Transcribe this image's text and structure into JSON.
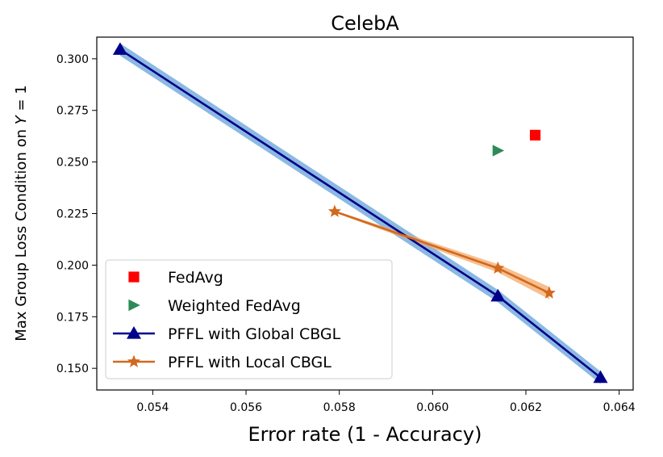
{
  "chart_data": {
    "type": "scatter",
    "title": "CelebA",
    "xlabel": "Error rate (1 - Accuracy)",
    "ylabel_prefix": "Max Group Loss Condition on ",
    "ylabel_var": "Y",
    "ylabel_suffix": " = 1",
    "xlim": [
      0.0528,
      0.0643
    ],
    "ylim": [
      0.1395,
      0.3105
    ],
    "x_ticks": [
      0.054,
      0.056,
      0.058,
      0.06,
      0.062,
      0.064
    ],
    "x_tick_labels": [
      "0.054",
      "0.056",
      "0.058",
      "0.060",
      "0.062",
      "0.064"
    ],
    "y_ticks": [
      0.15,
      0.175,
      0.2,
      0.225,
      0.25,
      0.275,
      0.3
    ],
    "y_tick_labels": [
      "0.150",
      "0.175",
      "0.200",
      "0.225",
      "0.250",
      "0.275",
      "0.300"
    ],
    "grid": false,
    "legend_position": "lower-left",
    "series": [
      {
        "name": "FedAvg",
        "kind": "point",
        "marker": "square",
        "color": "#ff0000",
        "x": [
          0.0622
        ],
        "y": [
          0.263
        ]
      },
      {
        "name": "Weighted FedAvg",
        "kind": "point",
        "marker": "triangle-right",
        "color": "#2e8b57",
        "x": [
          0.0614
        ],
        "y": [
          0.2555
        ]
      },
      {
        "name": "PFFL with Global CBGL",
        "kind": "line",
        "marker": "triangle-up",
        "color": "#00008b",
        "band_color": "#5b9bd5",
        "x": [
          0.0533,
          0.0614,
          0.0636
        ],
        "y": [
          0.3045,
          0.185,
          0.1455
        ],
        "band": [
          0.003,
          0.003,
          0.003
        ]
      },
      {
        "name": "PFFL with Local CBGL",
        "kind": "line",
        "marker": "star",
        "color": "#d2691e",
        "band_color": "#f4a460",
        "x": [
          0.0579,
          0.0614,
          0.0625
        ],
        "y": [
          0.226,
          0.1985,
          0.1865
        ],
        "band": [
          0.0005,
          0.002,
          0.003
        ]
      }
    ]
  }
}
